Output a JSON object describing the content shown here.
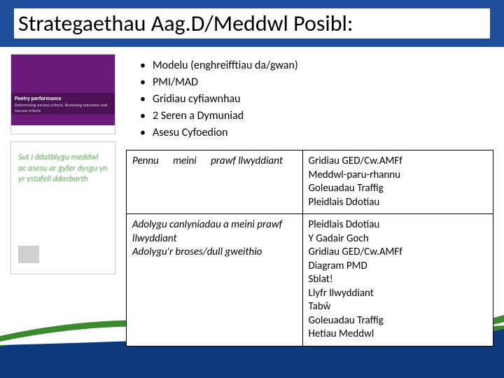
{
  "title": "Strategaethau Aag.D/Meddwl Posibl:",
  "bullets": [
    "Modelu (enghreifftiau da/gwan)",
    "PMI/MAD",
    "Gridiau cyfiawnhau",
    "2 Seren a Dymuniad",
    "Asesu Cyfoedion"
  ],
  "thumb1": {
    "title": "Poetry performance",
    "sub": "Determining success criteria. Reviewing outcomes and success criteria"
  },
  "thumb2": {
    "text": "Sut i ddatblygu meddwl ac asesu ar gyfer dysgu yn yr ystafell ddosbarth"
  },
  "table": {
    "rows": [
      {
        "left": "Pennu meini prawf llwyddiant",
        "right": "Gridiau GED/Cw.AMFf\nMeddwl-paru-rhannu\nGoleuadau Traffig\nPleidlais Ddotiau"
      },
      {
        "left": "Adolygu canlyniadau a meini prawf llwyddiant\nAdolygu'r broses/dull gweithio",
        "right": "Pleidlais Ddotiau\nY Gadair Goch\nGridiau GED/Cw.AMFf\nDiagram PMD\nSblat!\nLlyfr llwyddiant\nTabŵ\nGoleuadau Traffig\nHetiau Meddwl"
      }
    ]
  },
  "colors": {
    "title_bar": "#1f4e9c",
    "thumb1_bg": "#6a1b7a",
    "thumb2_text": "#5a9e4a",
    "wave_green": "#3a8a2e",
    "wave_blue": "#0a3a7a"
  }
}
